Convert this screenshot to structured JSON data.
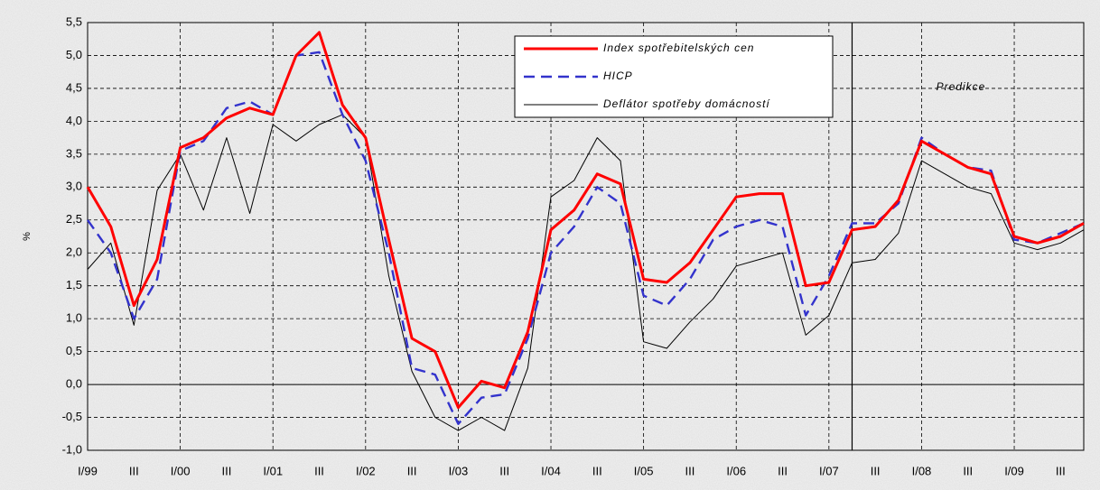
{
  "chart_data": {
    "type": "line",
    "y_label": "%",
    "annotation": "Predikce",
    "categories": [
      "I/99",
      null,
      "III",
      null,
      "I/00",
      null,
      "III",
      null,
      "I/01",
      null,
      "III",
      null,
      "I/02",
      null,
      "III",
      null,
      "I/03",
      null,
      "III",
      null,
      "I/04",
      null,
      "III",
      null,
      "I/05",
      null,
      "III",
      null,
      "I/06",
      null,
      "III",
      null,
      "I/07",
      null,
      "III",
      null,
      "I/08",
      null,
      "III",
      null,
      "I/09",
      null,
      "III",
      null
    ],
    "series": [
      {
        "name": "Index spotřebitelských cen",
        "color": "#ff0000",
        "style": "solid",
        "values": [
          3.0,
          2.4,
          1.2,
          1.9,
          3.6,
          3.75,
          4.05,
          4.2,
          4.1,
          5.0,
          5.35,
          4.25,
          3.75,
          2.2,
          0.7,
          0.5,
          -0.35,
          0.05,
          -0.05,
          0.8,
          2.35,
          2.65,
          3.2,
          3.05,
          1.6,
          1.55,
          1.85,
          2.35,
          2.85,
          2.9,
          2.9,
          1.5,
          1.55,
          2.35,
          2.4,
          2.8,
          3.7,
          3.5,
          3.3,
          3.2,
          2.25,
          2.15,
          2.25,
          2.45
        ]
      },
      {
        "name": "HICP",
        "color": "#3333cc",
        "style": "dashed",
        "values": [
          2.5,
          2.0,
          1.0,
          1.6,
          3.55,
          3.7,
          4.2,
          4.3,
          4.1,
          5.0,
          5.05,
          4.1,
          3.4,
          2.0,
          0.25,
          0.15,
          -0.6,
          -0.2,
          -0.15,
          0.7,
          2.0,
          2.4,
          3.0,
          2.75,
          1.35,
          1.2,
          1.6,
          2.2,
          2.4,
          2.5,
          2.4,
          1.05,
          1.65,
          2.45,
          2.45,
          2.75,
          3.75,
          3.5,
          3.3,
          3.25,
          2.2,
          2.15,
          2.3,
          2.45
        ]
      },
      {
        "name": "Deflátor spotřeby domácností",
        "color": "#000000",
        "style": "thin",
        "values": [
          1.75,
          2.15,
          0.9,
          2.95,
          3.5,
          2.65,
          3.75,
          2.6,
          3.95,
          3.7,
          3.95,
          4.1,
          3.75,
          1.65,
          0.2,
          -0.5,
          -0.7,
          -0.5,
          -0.7,
          0.25,
          2.85,
          3.1,
          3.75,
          3.4,
          0.65,
          0.55,
          0.95,
          1.3,
          1.8,
          1.9,
          2.0,
          0.75,
          1.05,
          1.85,
          1.9,
          2.3,
          3.4,
          3.2,
          3.0,
          2.9,
          2.15,
          2.05,
          2.15,
          2.35
        ]
      }
    ],
    "ylim": [
      -1.0,
      5.5
    ],
    "yticks": [
      {
        "value": -1.0,
        "label": "-1,0"
      },
      {
        "value": -0.5,
        "label": "-0,5"
      },
      {
        "value": 0.0,
        "label": "0,0"
      },
      {
        "value": 0.5,
        "label": "0,5"
      },
      {
        "value": 1.0,
        "label": "1,0"
      },
      {
        "value": 1.5,
        "label": "1,5"
      },
      {
        "value": 2.0,
        "label": "2,0"
      },
      {
        "value": 2.5,
        "label": "2,5"
      },
      {
        "value": 3.0,
        "label": "3,0"
      },
      {
        "value": 3.5,
        "label": "3,5"
      },
      {
        "value": 4.0,
        "label": "4,0"
      },
      {
        "value": 4.5,
        "label": "4,5"
      },
      {
        "value": 5.0,
        "label": "5,0"
      },
      {
        "value": 5.5,
        "label": "5,5"
      }
    ],
    "grid": true
  }
}
